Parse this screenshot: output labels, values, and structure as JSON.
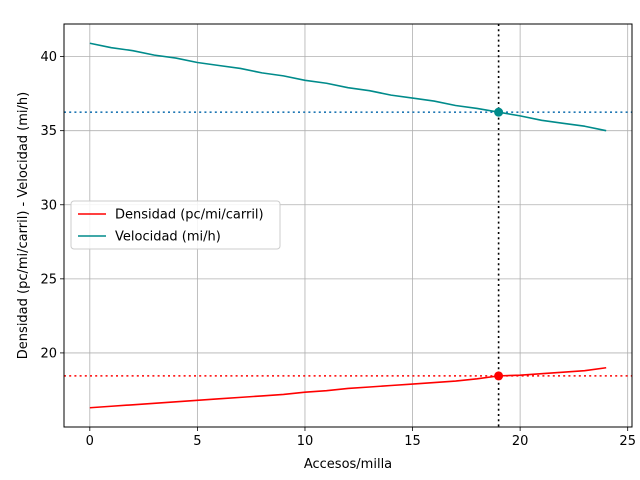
{
  "chart_data": {
    "type": "line",
    "title": "",
    "xlabel": "Accesos/milla",
    "ylabel": "Densidad (pc/mi/carril) - Velocidad (mi/h)",
    "xlim": [
      -1.2,
      25.2
    ],
    "ylim": [
      15.0,
      42.2
    ],
    "xticks": [
      0,
      5,
      10,
      15,
      20,
      25
    ],
    "yticks": [
      20,
      25,
      30,
      35,
      40
    ],
    "grid": true,
    "legend_position": "center-left",
    "x": [
      0,
      1,
      2,
      3,
      4,
      5,
      6,
      7,
      8,
      9,
      10,
      11,
      12,
      13,
      14,
      15,
      16,
      17,
      18,
      19,
      20,
      21,
      22,
      23,
      24
    ],
    "series": [
      {
        "name": "Densidad (pc/mi/carril)",
        "color": "#ff0000",
        "values": [
          16.3,
          16.4,
          16.5,
          16.6,
          16.7,
          16.8,
          16.9,
          17.0,
          17.1,
          17.2,
          17.35,
          17.45,
          17.6,
          17.7,
          17.8,
          17.9,
          18.0,
          18.1,
          18.25,
          18.45,
          18.5,
          18.6,
          18.7,
          18.8,
          19.0
        ]
      },
      {
        "name": "Velocidad (mi/h)",
        "color": "#008b8b",
        "values": [
          40.9,
          40.6,
          40.4,
          40.1,
          39.9,
          39.6,
          39.4,
          39.2,
          38.9,
          38.7,
          38.4,
          38.2,
          37.9,
          37.7,
          37.4,
          37.2,
          37.0,
          36.7,
          36.5,
          36.25,
          36.0,
          35.7,
          35.5,
          35.3,
          35.0
        ]
      }
    ],
    "reference": {
      "x": 19,
      "y_density": 18.45,
      "y_speed": 36.25,
      "vline_color": "#000000",
      "density_hline_color": "#ff0000",
      "speed_hline_color": "#1f77b4"
    }
  }
}
